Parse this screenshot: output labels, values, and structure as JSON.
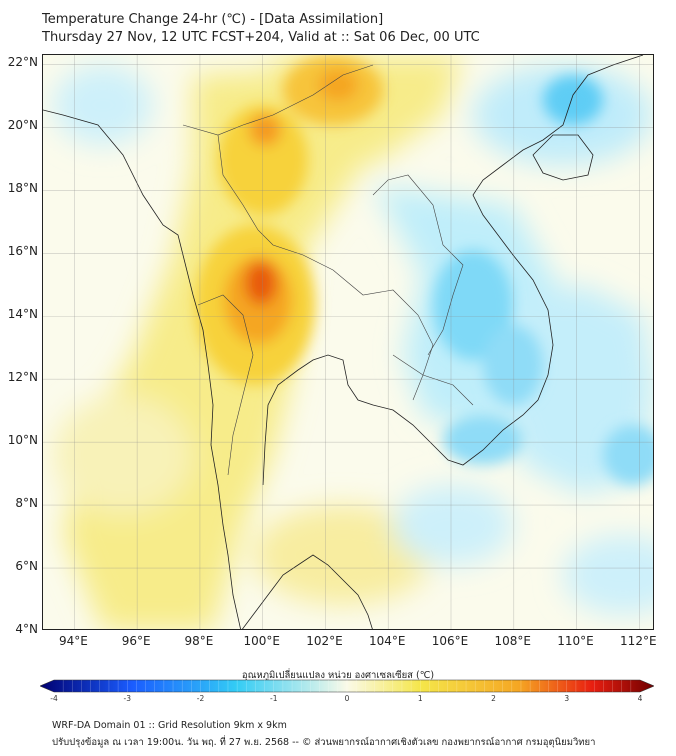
{
  "header": {
    "title_line1": "Temperature Change 24-hr (℃) - [Data Assimilation]",
    "title_line2": "Thursday 27 Nov, 12 UTC FCST+204, Valid at :: Sat 06 Dec, 00 UTC"
  },
  "map": {
    "latitude_labels": [
      "22°N",
      "20°N",
      "18°N",
      "16°N",
      "14°N",
      "12°N",
      "10°N",
      "8°N",
      "6°N",
      "4°N"
    ],
    "longitude_labels": [
      "94°E",
      "96°E",
      "98°E",
      "100°E",
      "102°E",
      "104°E",
      "106°E",
      "108°E",
      "110°E",
      "112°E"
    ],
    "lat_range": [
      4,
      22.3
    ],
    "lon_range": [
      93,
      112.5
    ],
    "warm_areas": [
      {
        "region": "central Thailand",
        "lat": 14.8,
        "lon": 100.0,
        "value": 3.0
      },
      {
        "region": "northern Laos",
        "lat": 21.2,
        "lon": 102.0,
        "value": 2.2
      },
      {
        "region": "northern Thailand",
        "lat": 19.8,
        "lon": 100.0,
        "value": 2.0
      },
      {
        "region": "Gulf of Thailand",
        "lat": 7.0,
        "lon": 101.0,
        "value": 1.0
      }
    ],
    "cool_areas": [
      {
        "region": "southern Laos / central Vietnam",
        "lat": 15.0,
        "lon": 106.8,
        "value": -1.0
      },
      {
        "region": "Gulf of Tonkin",
        "lat": 21.0,
        "lon": 109.0,
        "value": -1.3
      },
      {
        "region": "South China Sea",
        "lat": 9.5,
        "lon": 110.5,
        "value": -1.0
      }
    ]
  },
  "colorbar": {
    "label": "อุณหภูมิเปลี่ยนแปลง หน่วย องศาเซลเซียส (℃)",
    "ticks": [
      "-4",
      "-3",
      "-2",
      "-1",
      "0",
      "1",
      "2",
      "3",
      "4"
    ],
    "min": -4,
    "max": 4,
    "colors": {
      "cold_extreme": "#000070",
      "cold": "#1a5cff",
      "cool": "#33ccf5",
      "neutral": "#fafae8",
      "mild": "#f5e64a",
      "warm": "#f5a623",
      "hot": "#e81e10",
      "hot_extreme": "#700000"
    }
  },
  "footer": {
    "line1": "WRF-DA Domain 01 :: Grid Resolution 9km x 9km",
    "line2": "ปรับปรุงข้อมูล ณ เวลา 19:00น. วัน พฤ. ที่ 27 พ.ย. 2568 -- © ส่วนพยากรณ์อากาศเชิงตัวเลข กองพยากรณ์อากาศ กรมอุตุนิยมวิทยา"
  }
}
